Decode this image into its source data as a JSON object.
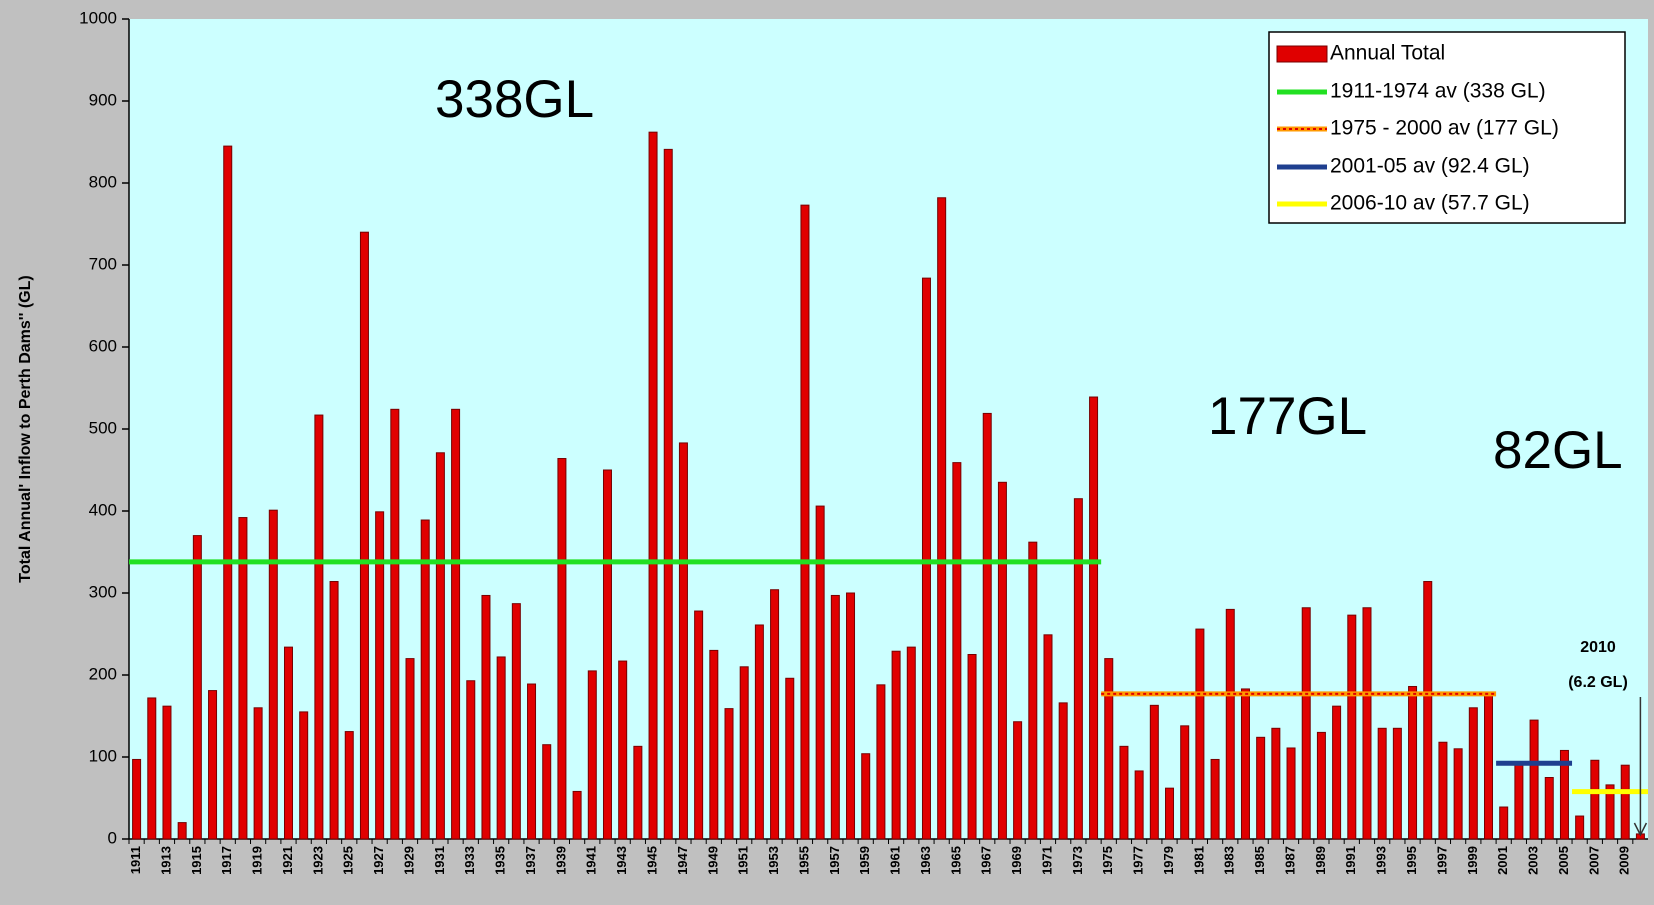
{
  "chart_data": {
    "type": "bar",
    "ylabel": "Total Annual' Inflow to Perth Dams'' (GL)",
    "categories": [
      "1911",
      null,
      "1913",
      null,
      "1915",
      null,
      "1917",
      null,
      "1919",
      null,
      "1921",
      null,
      "1923",
      null,
      "1925",
      null,
      "1927",
      null,
      "1929",
      null,
      "1931",
      null,
      "1933",
      null,
      "1935",
      null,
      "1937",
      null,
      "1939",
      null,
      "1941",
      null,
      "1943",
      null,
      "1945",
      null,
      "1947",
      null,
      "1949",
      null,
      "1951",
      null,
      "1953",
      null,
      "1955",
      null,
      "1957",
      null,
      "1959",
      null,
      "1961",
      null,
      "1963",
      null,
      "1965",
      null,
      "1967",
      null,
      "1969",
      null,
      "1971",
      null,
      "1973",
      null,
      "1975",
      null,
      "1977",
      null,
      "1979",
      null,
      "1981",
      null,
      "1983",
      null,
      "1985",
      null,
      "1987",
      null,
      "1989",
      null,
      "1991",
      null,
      "1993",
      null,
      "1995",
      null,
      "1997",
      null,
      "1999",
      null,
      "2001",
      null,
      "2003",
      null,
      "2005",
      null,
      "2007",
      null,
      "2009",
      null
    ],
    "series": [
      {
        "name": "Annual Total",
        "color": "#e00000",
        "values": [
          97,
          172,
          162,
          20,
          370,
          181,
          845,
          392,
          160,
          401,
          234,
          155,
          517,
          314,
          131,
          740,
          399,
          524,
          220,
          389,
          471,
          524,
          193,
          297,
          222,
          287,
          189,
          115,
          464,
          58,
          205,
          450,
          217,
          113,
          862,
          841,
          483,
          278,
          230,
          159,
          210,
          261,
          304,
          196,
          773,
          406,
          297,
          300,
          104,
          188,
          229,
          234,
          684,
          782,
          459,
          225,
          519,
          435,
          143,
          362,
          249,
          166,
          415,
          539,
          220,
          113,
          83,
          163,
          62,
          138,
          256,
          97,
          280,
          183,
          124,
          135,
          111,
          282,
          130,
          162,
          273,
          282,
          135,
          135,
          186,
          314,
          118,
          110,
          160,
          175,
          39,
          93,
          145,
          75,
          108,
          28,
          96,
          66,
          90,
          6.2
        ]
      }
    ],
    "averages": [
      {
        "name": "1911-1974 av (338 GL)",
        "color": "#22e022",
        "value": 338,
        "span": [
          1911,
          1974
        ]
      },
      {
        "name": "1975 - 2000 av (177 GL)",
        "color": "#ff9900",
        "value": 177,
        "span": [
          1975,
          2000
        ]
      },
      {
        "name": "2001-05 av (92.4 GL)",
        "color": "#1f3f8f",
        "value": 92.4,
        "span": [
          2001,
          2005
        ]
      },
      {
        "name": "2006-10 av (57.7 GL)",
        "color": "#ffff00",
        "value": 57.7,
        "span": [
          2006,
          2010
        ]
      }
    ],
    "ylim": [
      0,
      1000
    ],
    "yticks": [
      0,
      100,
      200,
      300,
      400,
      500,
      600,
      700,
      800,
      900,
      1000
    ],
    "annotations": [
      "338GL",
      "177GL",
      "82GL"
    ],
    "note": [
      "2010",
      "(6.2 GL)"
    ]
  }
}
